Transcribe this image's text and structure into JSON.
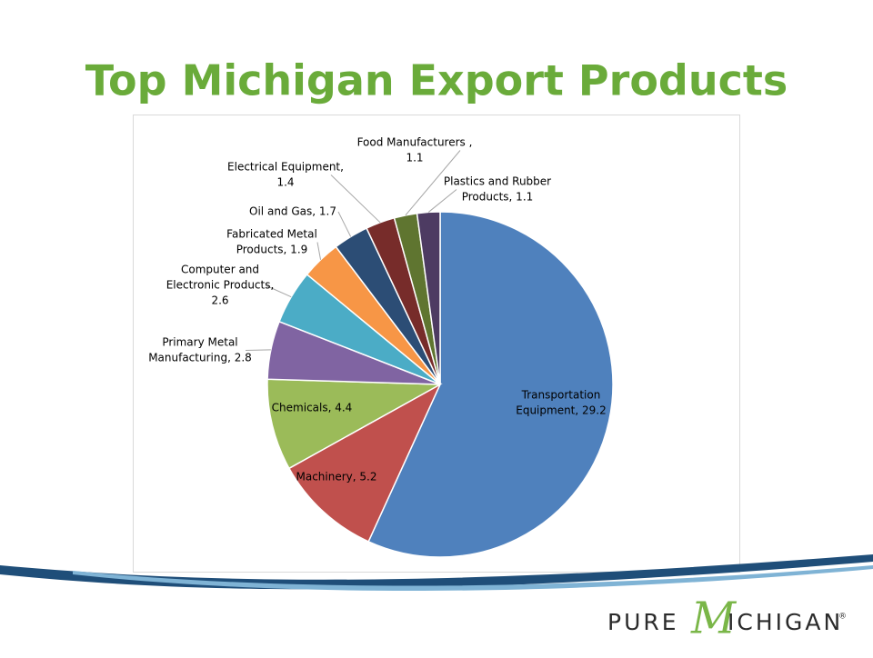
{
  "chart_data": {
    "type": "pie",
    "title": "Top Michigan Export Products",
    "labels": [
      [
        "Transportation",
        "Equipment, 29.2"
      ],
      [
        "Machinery, 5.2"
      ],
      [
        "Chemicals, 4.4"
      ],
      [
        "Primary Metal",
        "Manufacturing, 2.8"
      ],
      [
        "Computer and",
        "Electronic Products,",
        "2.6"
      ],
      [
        "Fabricated Metal",
        "Products, 1.9"
      ],
      [
        "Oil and Gas, 1.7"
      ],
      [
        "Electrical Equipment,",
        "1.4"
      ],
      [
        "Food Manufacturers ,",
        "1.1"
      ],
      [
        "Plastics and Rubber",
        "Products, 1.1"
      ]
    ],
    "values": [
      29.2,
      5.2,
      4.4,
      2.8,
      2.6,
      1.9,
      1.7,
      1.4,
      1.1,
      1.1
    ],
    "colors": [
      "#4f81bd",
      "#c0504d",
      "#9bbb59",
      "#8064a2",
      "#4bacc6",
      "#f79646",
      "#2c4d75",
      "#772c2a",
      "#5f7530",
      "#4d3b62"
    ]
  },
  "footer": {
    "logo_left": "PURE",
    "logo_mark": "M",
    "logo_right": "ICHIGAN",
    "registered": "®"
  }
}
